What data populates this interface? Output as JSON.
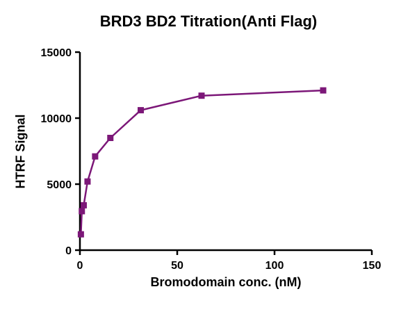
{
  "figure": {
    "background": "#ffffff",
    "axis_color": "#000000"
  },
  "chart_data": {
    "type": "scatter",
    "title": "BRD3 BD2 Titration(Anti Flag)",
    "xlabel": "Bromodomain conc. (nM)",
    "ylabel": "HTRF Signal",
    "xlim": [
      0,
      150
    ],
    "ylim": [
      0,
      15000
    ],
    "xticks": [
      0,
      50,
      100,
      150
    ],
    "yticks": [
      0,
      5000,
      10000,
      15000
    ],
    "grid": false,
    "legend": "none",
    "series": [
      {
        "name": "BRD3 BD2",
        "color": "#7C1778",
        "marker": "square",
        "line": true,
        "x": [
          0.49,
          0.98,
          1.95,
          3.91,
          7.81,
          15.63,
          31.25,
          62.5,
          125
        ],
        "y": [
          1200,
          2950,
          3400,
          5200,
          7100,
          8500,
          10600,
          11700,
          12100
        ]
      }
    ]
  }
}
